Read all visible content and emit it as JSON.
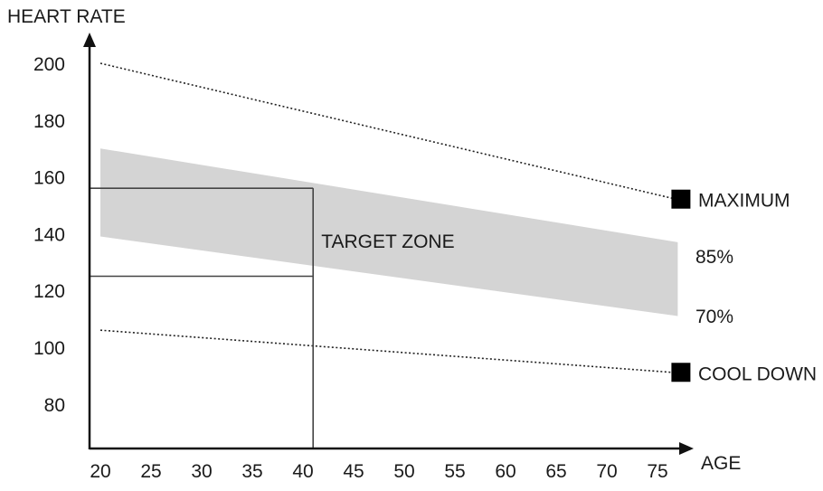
{
  "chart_data": {
    "type": "area",
    "ylabel": "HEART RATE",
    "xlabel": "AGE",
    "x_ticks": [
      20,
      25,
      30,
      35,
      40,
      45,
      50,
      55,
      60,
      65,
      70,
      75
    ],
    "y_ticks": [
      80,
      100,
      120,
      140,
      160,
      180,
      200
    ],
    "xlim": [
      20,
      78
    ],
    "ylim": [
      65,
      215
    ],
    "series": [
      {
        "name": "MAXIMUM",
        "x": [
          20,
          77
        ],
        "y": [
          200,
          152
        ],
        "style": "dotted",
        "marker": "square"
      },
      {
        "name": "85%",
        "x": [
          20,
          77
        ],
        "y": [
          170,
          137
        ],
        "style": "band-top"
      },
      {
        "name": "70%",
        "x": [
          20,
          77
        ],
        "y": [
          139,
          111
        ],
        "style": "band-bottom"
      },
      {
        "name": "COOL DOWN",
        "x": [
          20,
          77
        ],
        "y": [
          106,
          91
        ],
        "style": "dotted",
        "marker": "square"
      }
    ],
    "annotation": {
      "text": "TARGET ZONE",
      "age": 41,
      "lower": 125,
      "upper": 156
    },
    "grid": false,
    "colors": {
      "band": "#d4d4d4",
      "line": "#222222",
      "marker": "#000000"
    }
  }
}
